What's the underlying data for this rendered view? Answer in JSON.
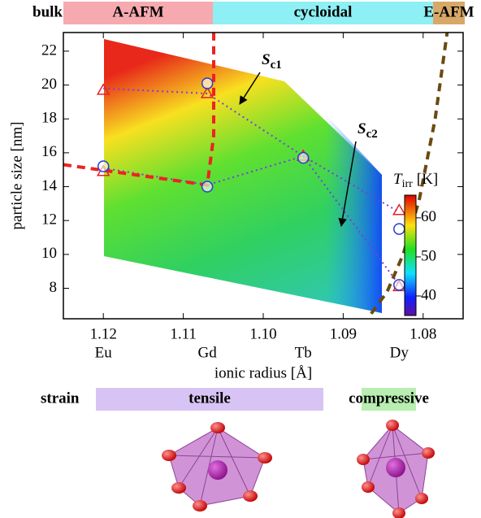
{
  "chart_data": {
    "type": "line",
    "x_label": "ionic radius [Å]",
    "y_label": "particle size [nm]",
    "xlim": [
      1.125,
      1.075
    ],
    "ylim": [
      6.2,
      23.1
    ],
    "xticks": [
      1.12,
      1.11,
      {
        "value": 1.1,
        "label": "1.10"
      },
      1.09,
      1.08
    ],
    "yticks": [
      8,
      10,
      12,
      14,
      16,
      18,
      20,
      22
    ],
    "elements": {
      "x": [
        1.12,
        1.107,
        1.095,
        1.083
      ],
      "labels": [
        "Eu",
        "Gd",
        "Tb",
        "Dy"
      ]
    },
    "series": [
      {
        "color": "#7a3ce0",
        "dash": "dotted",
        "marker": "none",
        "x": [
          1.12,
          1.107,
          1.095,
          1.083
        ],
        "values": [
          19.8,
          19.5,
          15.8,
          8.2
        ]
      },
      {
        "color": "#7a3ce0",
        "dash": "dotted",
        "marker": "none",
        "x": [
          1.12,
          1.107,
          1.095,
          1.083
        ],
        "values": [
          15.1,
          14.1,
          15.8,
          12.5
        ]
      },
      {
        "color": "#ee2222",
        "dash": "dashed",
        "marker": "none",
        "x": [
          1.125,
          1.107,
          1.1062,
          1.1062
        ],
        "values": [
          15.3,
          14.1,
          17,
          23.1
        ]
      },
      {
        "color": "#6b4a10",
        "dash": "dashed",
        "marker": "none",
        "x": [
          1.0865,
          1.0845,
          1.0825,
          1.0805,
          1.0785,
          1.077
        ],
        "values": [
          6.5,
          7.8,
          10,
          13.2,
          18,
          23.1
        ]
      },
      {
        "color": "#e8202a",
        "dash": "none",
        "marker": "triangle",
        "x": [
          1.12,
          1.12,
          1.107,
          1.095,
          1.083,
          1.083
        ],
        "values": [
          19.7,
          14.9,
          19.5,
          15.8,
          12.6,
          8.1
        ]
      },
      {
        "color": "#2a3cd0",
        "dash": "none",
        "marker": "circle",
        "x": [
          1.12,
          1.107,
          1.107,
          1.095,
          1.083,
          1.083
        ],
        "values": [
          15.2,
          20.1,
          14.0,
          15.7,
          11.5,
          8.2
        ]
      }
    ],
    "annotations": [
      {
        "text": "S",
        "sub": "c1"
      },
      {
        "text": "S",
        "sub": "c2"
      }
    ],
    "colorbar": {
      "label": "T",
      "sub": "irr",
      "unit": "[K]",
      "lim": [
        35,
        65.8
      ],
      "ticks": [
        40,
        50,
        60
      ]
    },
    "bulk": {
      "label": "bulk",
      "phases": [
        {
          "label": "A-AFM",
          "color": "#f7a9b0",
          "text_color": "#d02030"
        },
        {
          "label": "cycloidal",
          "color": "#8ef0f4",
          "text_color": "#1a40c8"
        },
        {
          "label": "E-AFM",
          "color": "#d8a868",
          "text_color": "#7a4a10"
        }
      ]
    },
    "strain": {
      "label": "strain",
      "phases": [
        {
          "label": "tensile",
          "color": "#d8c4f4",
          "text_color": "#9a3ed8"
        },
        {
          "label": "compressive",
          "color": "#b8eeb0",
          "text_color": "#1a9a1a"
        }
      ]
    }
  }
}
